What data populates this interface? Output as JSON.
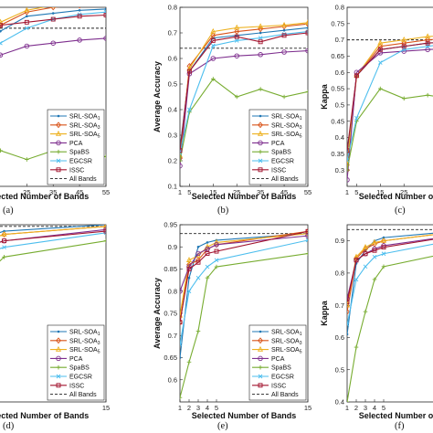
{
  "figure": {
    "panel_labels": [
      "(a)",
      "(b)",
      "(c)",
      "(d)",
      "(e)",
      "(f)"
    ]
  },
  "legend": {
    "entries": [
      {
        "prefix": "SRL-SOA",
        "sub": "1",
        "color": "#1f77b4",
        "marker": "point"
      },
      {
        "prefix": "SRL-SOA",
        "sub": "3",
        "color": "#d95319",
        "marker": "diamond"
      },
      {
        "prefix": "SRL-SOA",
        "sub": "5",
        "color": "#edb120",
        "marker": "triangle"
      },
      {
        "prefix": "PCA",
        "sub": "",
        "color": "#7e2f8e",
        "marker": "circle"
      },
      {
        "prefix": "SpaBS",
        "sub": "",
        "color": "#77ac30",
        "marker": "plus"
      },
      {
        "prefix": "EGCSR",
        "sub": "",
        "color": "#4dbeee",
        "marker": "x"
      },
      {
        "prefix": "ISSC",
        "sub": "",
        "color": "#a2142f",
        "marker": "square"
      },
      {
        "prefix": "All Bands",
        "sub": "",
        "color": "#222222",
        "marker": "dashed"
      }
    ]
  },
  "chart_data": [
    {
      "panel": "(a)",
      "type": "line",
      "xlabel": "Selected Number of Bands",
      "ylabel": "",
      "x": [
        1,
        5,
        15,
        25,
        35,
        45,
        55
      ],
      "xticks": [
        "25",
        "35",
        "45",
        "55"
      ],
      "xlim": [
        1,
        55
      ],
      "ylim": [
        0.5,
        0.8
      ],
      "yticks": [],
      "baseline": 0.765,
      "series": [
        {
          "name": "SRL-SOA1",
          "values": [
            0.55,
            0.68,
            0.76,
            0.785,
            0.79,
            0.795,
            0.797
          ]
        },
        {
          "name": "SRL-SOA3",
          "values": [
            0.55,
            0.69,
            0.77,
            0.792,
            0.8,
            0.803,
            0.805
          ]
        },
        {
          "name": "SRL-SOA5",
          "values": [
            0.55,
            0.69,
            0.775,
            0.795,
            0.803,
            0.806,
            0.808
          ]
        },
        {
          "name": "PCA",
          "values": [
            0.5,
            0.64,
            0.72,
            0.735,
            0.74,
            0.745,
            0.748
          ]
        },
        {
          "name": "SpaBS",
          "values": [
            0.52,
            0.55,
            0.56,
            0.545,
            0.56,
            0.545,
            0.55
          ]
        },
        {
          "name": "EGCSR",
          "values": [
            0.52,
            0.65,
            0.74,
            0.765,
            0.78,
            0.788,
            0.792
          ]
        },
        {
          "name": "ISSC",
          "values": [
            0.54,
            0.69,
            0.77,
            0.775,
            0.78,
            0.785,
            0.787
          ]
        }
      ]
    },
    {
      "panel": "(b)",
      "type": "line",
      "xlabel": "Selected Number of Bands",
      "ylabel": "Average Accuracy",
      "x": [
        1,
        5,
        15,
        25,
        35,
        45,
        55
      ],
      "xticks": [
        "1",
        "5",
        "15",
        "25",
        "35",
        "45",
        "55"
      ],
      "xlim": [
        1,
        55
      ],
      "ylim": [
        0.1,
        0.8
      ],
      "yticks": [
        "0.1",
        "0.2",
        "0.3",
        "0.4",
        "0.5",
        "0.6",
        "0.7",
        "0.8"
      ],
      "baseline": 0.64,
      "series": [
        {
          "name": "SRL-SOA1",
          "values": [
            0.25,
            0.55,
            0.68,
            0.69,
            0.7,
            0.71,
            0.72
          ]
        },
        {
          "name": "SRL-SOA3",
          "values": [
            0.21,
            0.57,
            0.69,
            0.705,
            0.715,
            0.725,
            0.735
          ]
        },
        {
          "name": "SRL-SOA5",
          "values": [
            0.22,
            0.56,
            0.705,
            0.72,
            0.725,
            0.73,
            0.74
          ]
        },
        {
          "name": "PCA",
          "values": [
            0.18,
            0.54,
            0.6,
            0.61,
            0.615,
            0.625,
            0.63
          ]
        },
        {
          "name": "SpaBS",
          "values": [
            0.2,
            0.39,
            0.52,
            0.45,
            0.48,
            0.45,
            0.47
          ]
        },
        {
          "name": "EGCSR",
          "values": [
            0.23,
            0.4,
            0.65,
            0.67,
            0.68,
            0.695,
            0.705
          ]
        },
        {
          "name": "ISSC",
          "values": [
            0.24,
            0.55,
            0.67,
            0.685,
            0.665,
            0.69,
            0.7
          ]
        }
      ]
    },
    {
      "panel": "(c)",
      "type": "line",
      "xlabel": "Selected Number of Bands",
      "ylabel": "Kappa",
      "x": [
        1,
        5,
        15,
        25,
        35,
        45,
        55
      ],
      "xticks": [
        "1",
        "5",
        "15",
        "25"
      ],
      "xlim": [
        1,
        55
      ],
      "ylim": [
        0.25,
        0.8
      ],
      "yticks": [
        "0.3",
        "0.35",
        "0.4",
        "0.45",
        "0.5",
        "0.55",
        "0.6",
        "0.65",
        "0.7",
        "0.75",
        "0.8"
      ],
      "baseline": 0.7,
      "series": [
        {
          "name": "SRL-SOA1",
          "values": [
            0.35,
            0.59,
            0.67,
            0.68,
            0.69,
            0.695,
            0.7
          ]
        },
        {
          "name": "SRL-SOA3",
          "values": [
            0.3,
            0.59,
            0.68,
            0.69,
            0.7,
            0.705,
            0.71
          ]
        },
        {
          "name": "SRL-SOA5",
          "values": [
            0.32,
            0.59,
            0.69,
            0.7,
            0.71,
            0.715,
            0.72
          ]
        },
        {
          "name": "PCA",
          "values": [
            0.27,
            0.6,
            0.66,
            0.665,
            0.67,
            0.675,
            0.68
          ]
        },
        {
          "name": "SpaBS",
          "values": [
            0.3,
            0.45,
            0.55,
            0.52,
            0.53,
            0.52,
            0.53
          ]
        },
        {
          "name": "EGCSR",
          "values": [
            0.33,
            0.46,
            0.63,
            0.67,
            0.68,
            0.69,
            0.695
          ]
        },
        {
          "name": "ISSC",
          "values": [
            0.36,
            0.59,
            0.67,
            0.68,
            0.69,
            0.695,
            0.7
          ]
        }
      ]
    },
    {
      "panel": "(d)",
      "type": "line",
      "xlabel": "Selected Number of Bands",
      "ylabel": "",
      "x": [
        1,
        2,
        3,
        4,
        5,
        15
      ],
      "xticks": [
        "15"
      ],
      "xlim": [
        1,
        15
      ],
      "ylim": [
        0.4,
        0.95
      ],
      "yticks": [],
      "baseline": 0.945,
      "series": [
        {
          "name": "SRL-SOA1",
          "values": [
            0.72,
            0.85,
            0.9,
            0.92,
            0.93,
            0.95
          ]
        },
        {
          "name": "SRL-SOA3",
          "values": [
            0.74,
            0.86,
            0.9,
            0.91,
            0.92,
            0.945
          ]
        },
        {
          "name": "SRL-SOA5",
          "values": [
            0.74,
            0.86,
            0.9,
            0.91,
            0.92,
            0.945
          ]
        },
        {
          "name": "PCA",
          "values": [
            0.8,
            0.86,
            0.88,
            0.89,
            0.9,
            0.935
          ]
        },
        {
          "name": "SpaBS",
          "values": [
            0.4,
            0.6,
            0.72,
            0.82,
            0.85,
            0.9
          ]
        },
        {
          "name": "EGCSR",
          "values": [
            0.7,
            0.8,
            0.84,
            0.87,
            0.88,
            0.925
          ]
        },
        {
          "name": "ISSC",
          "values": [
            0.74,
            0.85,
            0.88,
            0.89,
            0.9,
            0.93
          ]
        }
      ]
    },
    {
      "panel": "(e)",
      "type": "line",
      "xlabel": "Selected Number of Bands",
      "ylabel": "Average Accuracy",
      "x": [
        1,
        2,
        3,
        4,
        5,
        15
      ],
      "xticks": [
        "1",
        "2",
        "3",
        "4",
        "5",
        "15"
      ],
      "xlim": [
        1,
        15
      ],
      "ylim": [
        0.55,
        0.95
      ],
      "yticks": [
        "0.6",
        "0.65",
        "0.7",
        "0.75",
        "0.8",
        "0.85",
        "0.9",
        "0.95"
      ],
      "baseline": 0.93,
      "series": [
        {
          "name": "SRL-SOA1",
          "values": [
            0.65,
            0.83,
            0.9,
            0.91,
            0.915,
            0.93
          ]
        },
        {
          "name": "SRL-SOA3",
          "values": [
            0.73,
            0.86,
            0.87,
            0.895,
            0.905,
            0.935
          ]
        },
        {
          "name": "SRL-SOA5",
          "values": [
            0.745,
            0.87,
            0.88,
            0.9,
            0.91,
            0.93
          ]
        },
        {
          "name": "PCA",
          "values": [
            0.8,
            0.855,
            0.885,
            0.895,
            0.905,
            0.925
          ]
        },
        {
          "name": "SpaBS",
          "values": [
            0.56,
            0.64,
            0.71,
            0.83,
            0.855,
            0.885
          ]
        },
        {
          "name": "EGCSR",
          "values": [
            0.68,
            0.8,
            0.83,
            0.855,
            0.87,
            0.915
          ]
        },
        {
          "name": "ISSC",
          "values": [
            0.73,
            0.85,
            0.865,
            0.885,
            0.89,
            0.935
          ]
        }
      ]
    },
    {
      "panel": "(f)",
      "type": "line",
      "xlabel": "Selected Number of Bands",
      "ylabel": "Kappa",
      "x": [
        1,
        2,
        3,
        4,
        5,
        15
      ],
      "xticks": [
        "1",
        "2",
        "3",
        "4",
        "5"
      ],
      "xlim": [
        1,
        15
      ],
      "ylim": [
        0.4,
        0.95
      ],
      "yticks": [
        "0.4",
        "0.5",
        "0.6",
        "0.7",
        "0.8",
        "0.9"
      ],
      "baseline": 0.935,
      "series": [
        {
          "name": "SRL-SOA1",
          "values": [
            0.61,
            0.83,
            0.87,
            0.9,
            0.91,
            0.935
          ]
        },
        {
          "name": "SRL-SOA3",
          "values": [
            0.68,
            0.845,
            0.875,
            0.89,
            0.9,
            0.935
          ]
        },
        {
          "name": "SRL-SOA5",
          "values": [
            0.7,
            0.85,
            0.88,
            0.895,
            0.9,
            0.935
          ]
        },
        {
          "name": "PCA",
          "values": [
            0.72,
            0.84,
            0.86,
            0.875,
            0.885,
            0.925
          ]
        },
        {
          "name": "SpaBS",
          "values": [
            0.4,
            0.57,
            0.68,
            0.78,
            0.82,
            0.88
          ]
        },
        {
          "name": "EGCSR",
          "values": [
            0.64,
            0.78,
            0.82,
            0.85,
            0.86,
            0.915
          ]
        },
        {
          "name": "ISSC",
          "values": [
            0.71,
            0.84,
            0.86,
            0.87,
            0.88,
            0.925
          ]
        }
      ]
    }
  ]
}
